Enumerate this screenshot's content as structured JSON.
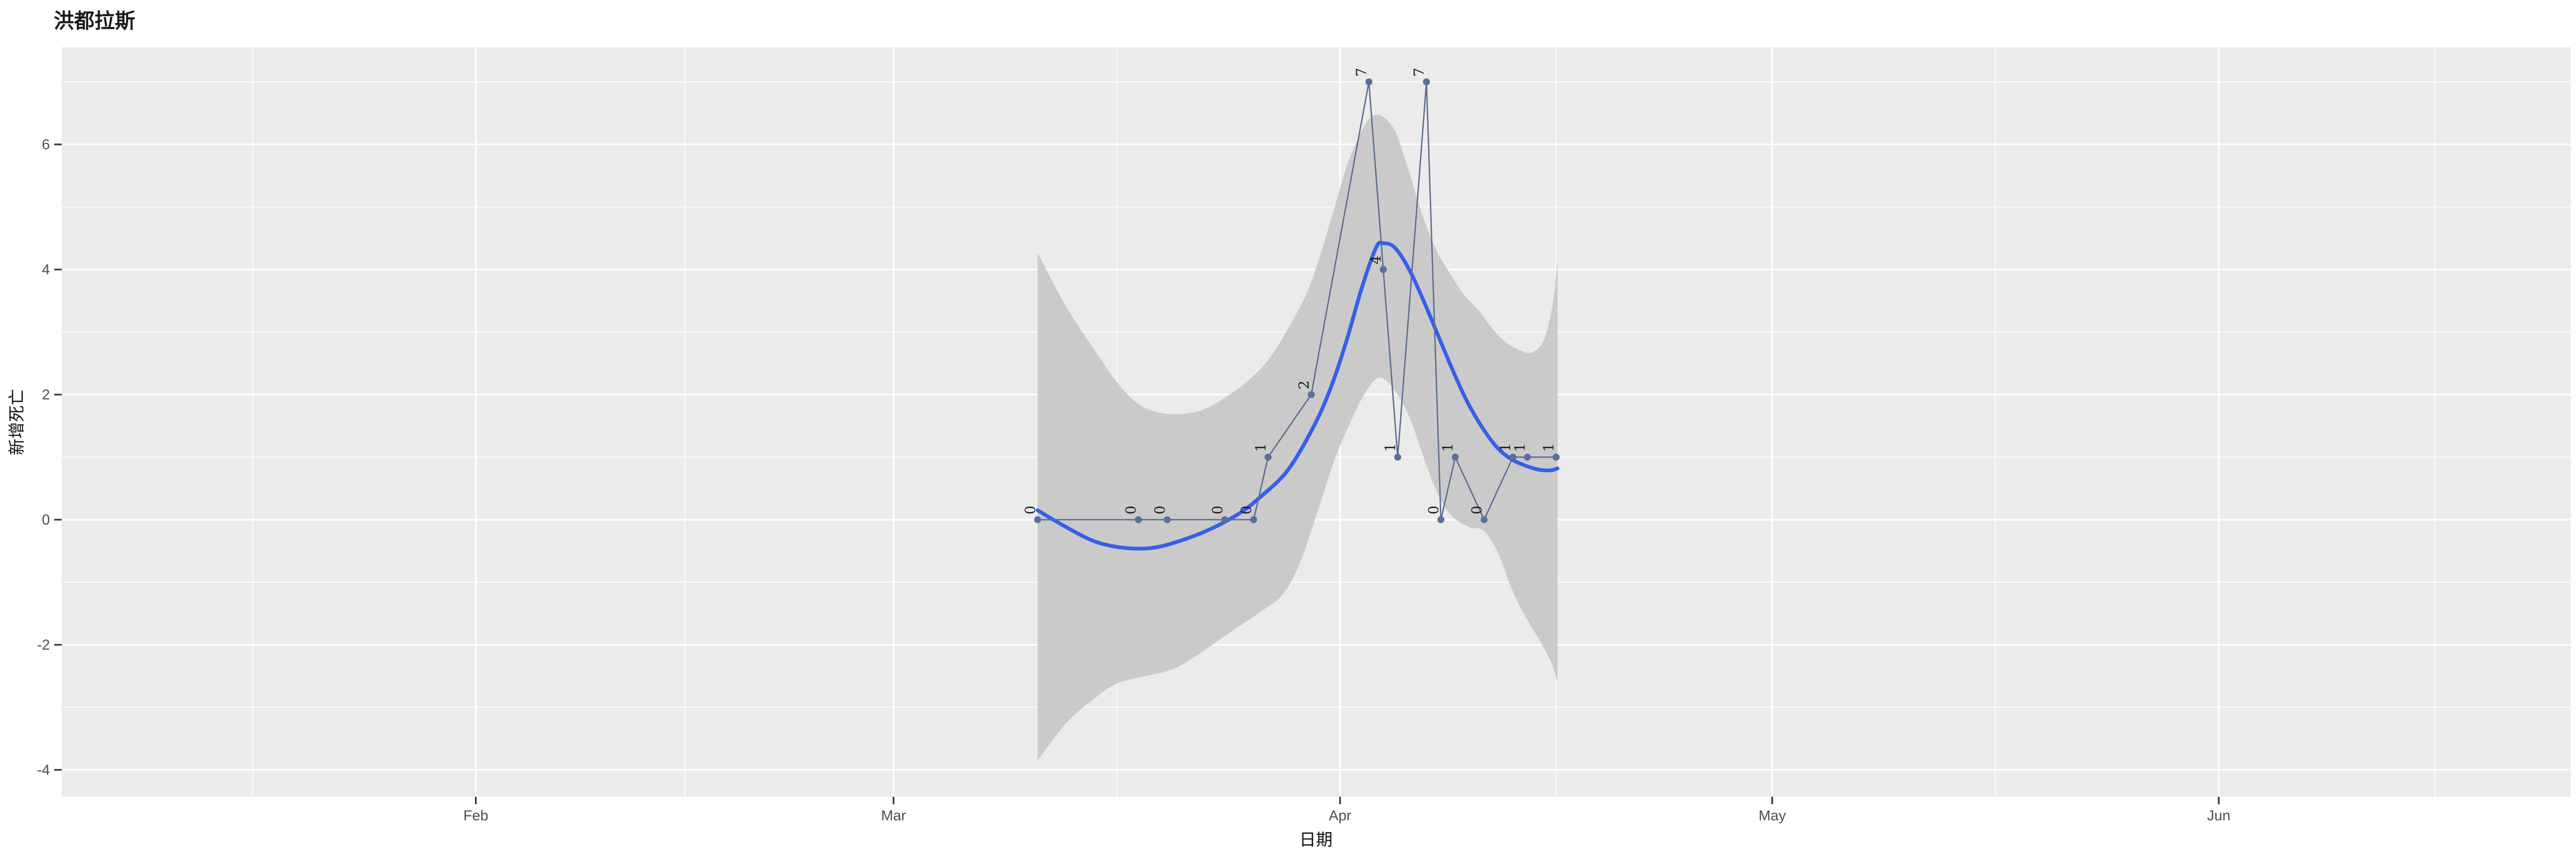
{
  "title": "洪都拉斯",
  "axes": {
    "x_label": "日期",
    "y_label": "新增死亡",
    "x_tick_labels": [
      "Feb",
      "Mar",
      "Apr",
      "May",
      "Jun"
    ],
    "y_tick_labels": [
      "6",
      "4",
      "2",
      "0",
      "-2",
      "-4"
    ]
  },
  "style": {
    "page_bg": "#FFFFFF",
    "panel_bg": "#EBEBEB",
    "grid_color": "#FFFFFF",
    "ribbon_fill": "#CACACA",
    "smooth_line": "#3560E8",
    "series_line": "#5D6C8F",
    "point_fill": "#5A6F9B",
    "label_color": "#1A1A1A",
    "tick_text": "#4D4D4D",
    "tick_mark": "#333333"
  },
  "chart_data": {
    "type": "line",
    "title": "洪都拉斯",
    "xlabel": "日期",
    "ylabel": "新增死亡",
    "legend": "none",
    "grid": "on",
    "x_axis": {
      "unit": "days_from_Apr1_2020",
      "major_ticks": [
        -60,
        -31,
        0,
        30,
        61
      ],
      "major_tick_labels": [
        "Feb",
        "Mar",
        "Apr",
        "May",
        "Jun"
      ],
      "minor_ticks": [
        -75.5,
        -45.5,
        -15.5,
        15,
        45.5,
        76
      ],
      "domain": [
        -88.7,
        85.4
      ]
    },
    "y_axis": {
      "major_ticks": [
        6,
        4,
        2,
        0,
        -2,
        -4
      ],
      "minor_ticks": [
        7,
        5,
        3,
        1,
        -1,
        -3
      ],
      "ylim": [
        -4.43,
        7.55
      ]
    },
    "points": [
      {
        "date": "2020-03-11",
        "d": -21,
        "value": 0
      },
      {
        "date": "2020-03-18",
        "d": -14,
        "value": 0
      },
      {
        "date": "2020-03-20",
        "d": -12,
        "value": 0
      },
      {
        "date": "2020-03-24",
        "d": -8,
        "value": 0
      },
      {
        "date": "2020-03-26",
        "d": -6,
        "value": 0
      },
      {
        "date": "2020-03-27",
        "d": -5,
        "value": 1
      },
      {
        "date": "2020-03-30",
        "d": -2,
        "value": 2
      },
      {
        "date": "2020-04-03",
        "d": 2,
        "value": 7
      },
      {
        "date": "2020-04-04",
        "d": 3,
        "value": 4
      },
      {
        "date": "2020-04-05",
        "d": 4,
        "value": 1
      },
      {
        "date": "2020-04-07",
        "d": 6,
        "value": 7
      },
      {
        "date": "2020-04-08",
        "d": 7,
        "value": 0
      },
      {
        "date": "2020-04-09",
        "d": 8,
        "value": 1
      },
      {
        "date": "2020-04-11",
        "d": 10,
        "value": 0
      },
      {
        "date": "2020-04-13",
        "d": 12,
        "value": 1
      },
      {
        "date": "2020-04-14",
        "d": 13,
        "value": 1
      },
      {
        "date": "2020-04-16",
        "d": 15,
        "value": 1
      }
    ],
    "smooth_line": [
      [
        -21,
        0.15
      ],
      [
        -19,
        -0.12
      ],
      [
        -17,
        -0.35
      ],
      [
        -15,
        -0.45
      ],
      [
        -13,
        -0.45
      ],
      [
        -11,
        -0.33
      ],
      [
        -9,
        -0.15
      ],
      [
        -7,
        0.1
      ],
      [
        -5.5,
        0.37
      ],
      [
        -3.6,
        0.8
      ],
      [
        -1.7,
        1.55
      ],
      [
        -0.5,
        2.2
      ],
      [
        0.5,
        2.9
      ],
      [
        1.5,
        3.7
      ],
      [
        2.5,
        4.35
      ],
      [
        3,
        4.42
      ],
      [
        3.8,
        4.35
      ],
      [
        4.8,
        4.0
      ],
      [
        5.8,
        3.5
      ],
      [
        6.8,
        2.95
      ],
      [
        7.8,
        2.4
      ],
      [
        8.8,
        1.9
      ],
      [
        9.8,
        1.5
      ],
      [
        10.8,
        1.18
      ],
      [
        11.8,
        0.98
      ],
      [
        12.8,
        0.87
      ],
      [
        13.8,
        0.8
      ],
      [
        14.6,
        0.79
      ],
      [
        15.1,
        0.82
      ]
    ],
    "ribbon": {
      "upper": [
        [
          -21,
          4.27
        ],
        [
          -19,
          3.4
        ],
        [
          -17,
          2.7
        ],
        [
          -15.5,
          2.2
        ],
        [
          -14,
          1.85
        ],
        [
          -12.5,
          1.71
        ],
        [
          -11,
          1.69
        ],
        [
          -9.5,
          1.76
        ],
        [
          -8,
          1.95
        ],
        [
          -6.5,
          2.2
        ],
        [
          -5,
          2.55
        ],
        [
          -3.5,
          3.1
        ],
        [
          -2,
          3.8
        ],
        [
          -0.5,
          4.9
        ],
        [
          0.7,
          5.8
        ],
        [
          2.2,
          6.45
        ],
        [
          3.6,
          6.3
        ],
        [
          4.6,
          5.7
        ],
        [
          5.6,
          4.95
        ],
        [
          6.6,
          4.35
        ],
        [
          7.6,
          3.95
        ],
        [
          8.6,
          3.6
        ],
        [
          9.6,
          3.35
        ],
        [
          10.6,
          3.05
        ],
        [
          11.6,
          2.82
        ],
        [
          12.6,
          2.7
        ],
        [
          13.4,
          2.68
        ],
        [
          14.2,
          2.9
        ],
        [
          14.8,
          3.5
        ],
        [
          15.1,
          4.2
        ]
      ],
      "lower": [
        [
          -21,
          -3.85
        ],
        [
          -19,
          -3.25
        ],
        [
          -17,
          -2.85
        ],
        [
          -15.5,
          -2.62
        ],
        [
          -13.5,
          -2.5
        ],
        [
          -11.5,
          -2.38
        ],
        [
          -9.5,
          -2.1
        ],
        [
          -7.5,
          -1.78
        ],
        [
          -5.5,
          -1.47
        ],
        [
          -4,
          -1.2
        ],
        [
          -2.8,
          -0.7
        ],
        [
          -1.6,
          0.1
        ],
        [
          -0.4,
          0.95
        ],
        [
          0.8,
          1.6
        ],
        [
          1.8,
          2.05
        ],
        [
          2.7,
          2.27
        ],
        [
          3.7,
          2.1
        ],
        [
          4.8,
          1.65
        ],
        [
          5.8,
          1.0
        ],
        [
          6.8,
          0.4
        ],
        [
          7.8,
          0.05
        ],
        [
          9,
          -0.12
        ],
        [
          10,
          -0.18
        ],
        [
          11,
          -0.55
        ],
        [
          12,
          -1.15
        ],
        [
          13,
          -1.6
        ],
        [
          13.9,
          -1.95
        ],
        [
          14.7,
          -2.3
        ],
        [
          15.1,
          -2.6
        ]
      ]
    }
  }
}
